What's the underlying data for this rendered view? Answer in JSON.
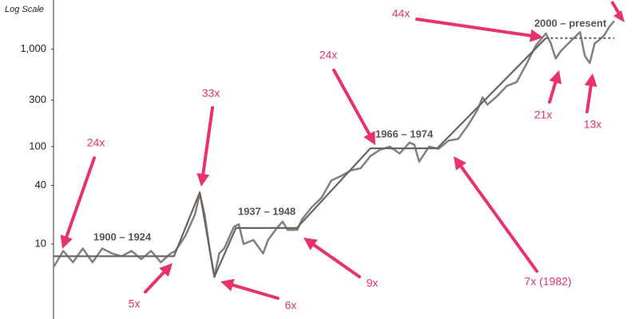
{
  "chart_data": {
    "type": "line",
    "y_axis_label": "Log Scale",
    "log_scale": true,
    "xlim": [
      1899,
      2015
    ],
    "ylim": [
      1.7,
      3200
    ],
    "yticks": [
      10,
      40,
      100,
      300,
      {
        "value": 1000,
        "label": "1,000"
      }
    ],
    "grid": false,
    "series": [
      {
        "color": "#808080",
        "style": "solid",
        "x": [
          1899,
          1900,
          1901,
          1903,
          1905,
          1907,
          1909,
          1911,
          1913,
          1915,
          1917,
          1919,
          1921,
          1923,
          1924,
          1926,
          1928,
          1929,
          1930,
          1931,
          1932,
          1933,
          1934,
          1936,
          1937,
          1938,
          1940,
          1942,
          1943,
          1945,
          1946,
          1947,
          1949,
          1950,
          1952,
          1954,
          1956,
          1958,
          1960,
          1962,
          1964,
          1966,
          1968,
          1970,
          1972,
          1973,
          1974,
          1976,
          1978,
          1980,
          1982,
          1984,
          1986,
          1987,
          1988,
          1990,
          1992,
          1994,
          1996,
          1998,
          2000,
          2001,
          2002,
          2003,
          2005,
          2007,
          2008,
          2009,
          2010,
          2011,
          2012,
          2013,
          2014
        ],
        "values": [
          5.8,
          7,
          8.5,
          6.5,
          9,
          6.5,
          9,
          8,
          7.5,
          8.5,
          7,
          8.5,
          6.5,
          8,
          8.5,
          12,
          20,
          33,
          20,
          9,
          4.6,
          8,
          9,
          15,
          16,
          10,
          11,
          8,
          11,
          15,
          17,
          14,
          14,
          18,
          24,
          30,
          45,
          50,
          57,
          60,
          80,
          93,
          100,
          85,
          110,
          105,
          70,
          100,
          95,
          115,
          120,
          165,
          240,
          320,
          270,
          330,
          420,
          460,
          700,
          1100,
          1450,
          1150,
          800,
          950,
          1200,
          1500,
          850,
          720,
          1150,
          1250,
          1400,
          1700,
          1950
        ]
      },
      {
        "color": "#6e625c",
        "style": "solid",
        "x": [
          1899,
          1923.7,
          1929,
          1932,
          1936.4,
          1948.9,
          1964,
          1977.7,
          2000
        ],
        "values": [
          7.5,
          7.5,
          34,
          4.6,
          14.6,
          14.6,
          96,
          96,
          1300
        ]
      },
      {
        "color": "#6e625c",
        "style": "dotted",
        "x": [
          2000,
          2014
        ],
        "values": [
          1300,
          1300
        ]
      }
    ],
    "annotations": [
      "24x",
      "33x",
      "24x",
      "44x",
      "5x",
      "6x",
      "9x",
      "7x (1982)",
      "21x",
      "13x"
    ],
    "periods": [
      "1900 – 1924",
      "1937 – 1948",
      "1966 – 1974",
      "2000 – present"
    ]
  }
}
